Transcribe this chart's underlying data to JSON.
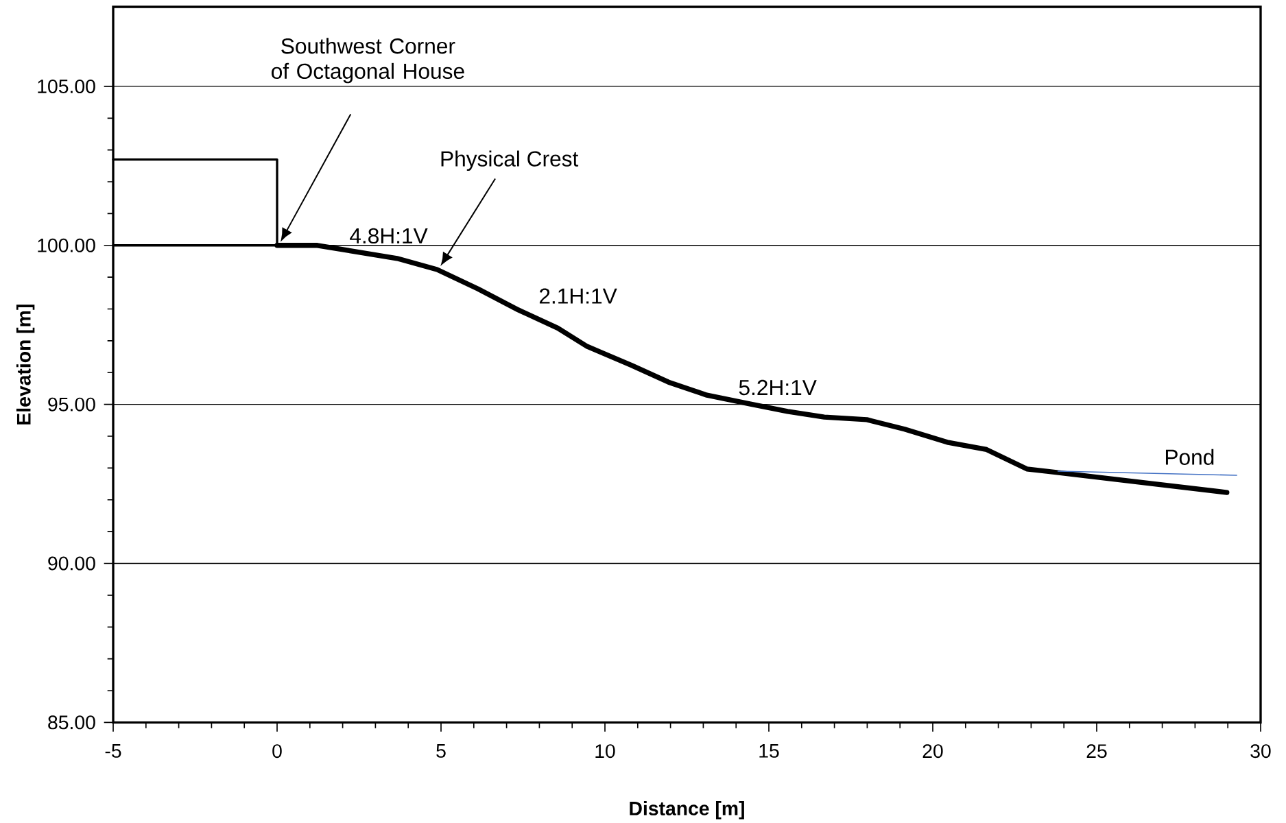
{
  "chart_data": {
    "type": "line",
    "xlabel": "Distance [m]",
    "ylabel": "Elevation [m]",
    "xlim": [
      -5,
      30
    ],
    "ylim": [
      85,
      107.5
    ],
    "xticks": [
      -5,
      0,
      5,
      10,
      15,
      20,
      25,
      30
    ],
    "yticks": [
      {
        "value": 85,
        "label": "85.00"
      },
      {
        "value": 90,
        "label": "90.00"
      },
      {
        "value": 95,
        "label": "95.00"
      },
      {
        "value": 100,
        "label": "100.00"
      },
      {
        "value": 105,
        "label": "105.00"
      }
    ],
    "grid": "y",
    "marker": "none",
    "line_style": "solid",
    "series": [
      {
        "color": "#000000",
        "x": [
          0,
          1.23,
          3.66,
          4.88,
          6.13,
          7.36,
          8.56,
          9.46,
          10.81,
          11.94,
          13.11,
          14.44,
          15.57,
          16.69,
          17.99,
          19.14,
          20.44,
          21.64,
          22.87,
          28.97
        ],
        "values": [
          100,
          100,
          99.59,
          99.24,
          98.63,
          97.97,
          97.4,
          96.82,
          96.23,
          95.7,
          95.29,
          95.01,
          94.78,
          94.6,
          94.52,
          94.22,
          93.81,
          93.58,
          92.97,
          92.23
        ]
      },
      {
        "color": "#000000",
        "x": [
          -5,
          0,
          0,
          -5
        ],
        "values": [
          102.7,
          102.7,
          100,
          100
        ]
      },
      {
        "name": "Pond",
        "color": "#4472c4",
        "x": [
          23.82,
          29.27
        ],
        "values": [
          92.9,
          92.77
        ]
      }
    ],
    "annotations": [
      "Southwest Corner of Octagonal House",
      "Physical Crest",
      "4.8H:1V",
      "2.1H:1V",
      "5.2H:1V"
    ]
  }
}
